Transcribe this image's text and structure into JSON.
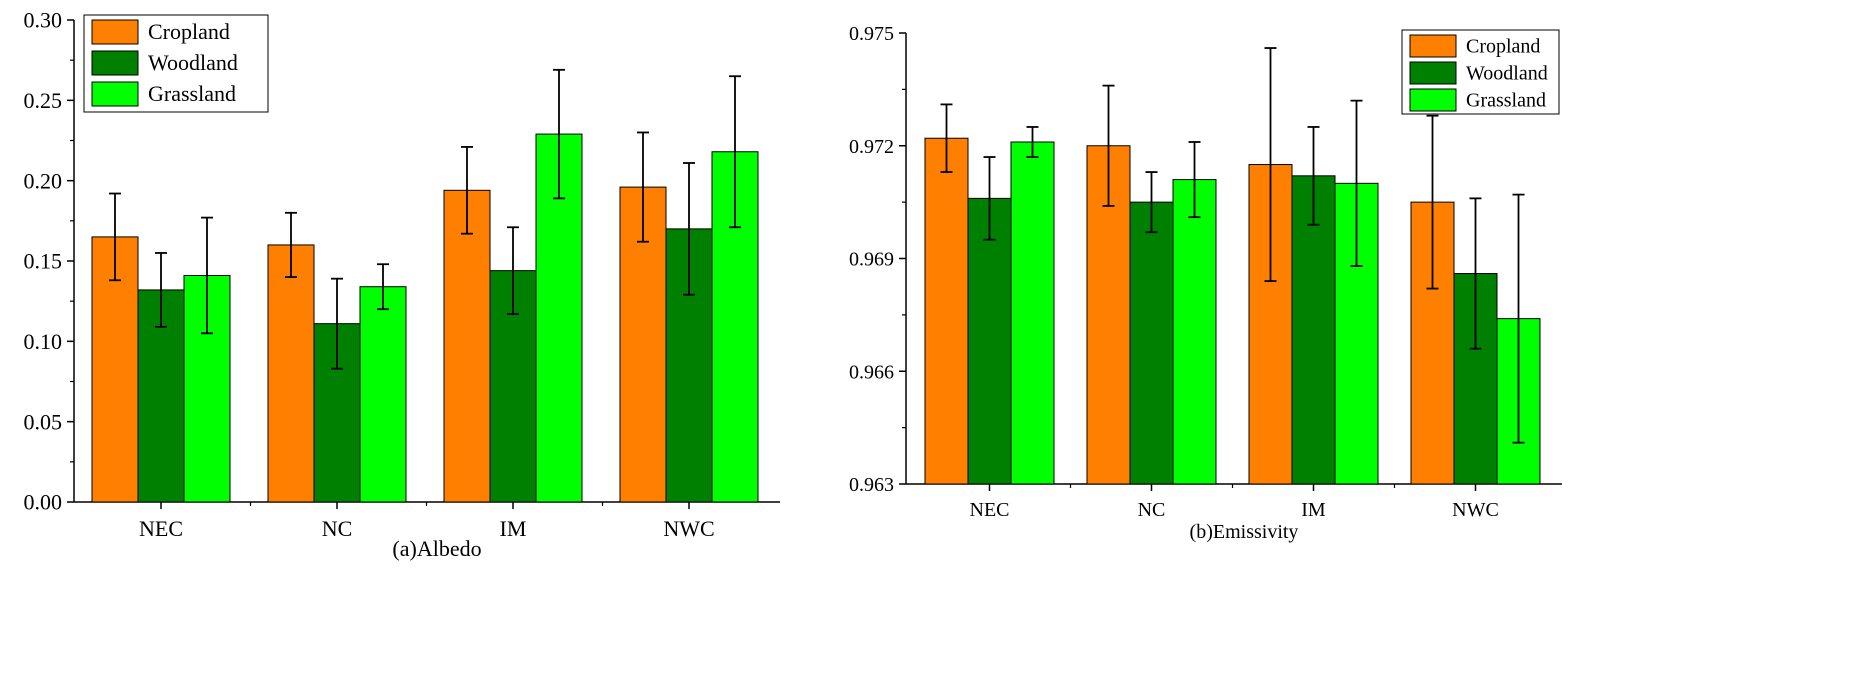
{
  "chart_data": [
    {
      "type": "bar",
      "title": "(a)Albedo",
      "xlabel": "",
      "ylabel": "",
      "categories": [
        "NEC",
        "NC",
        "IM",
        "NWC"
      ],
      "ylim": [
        0,
        0.3
      ],
      "yticks": [
        "0.00",
        "0.05",
        "0.10",
        "0.15",
        "0.20",
        "0.25",
        "0.30"
      ],
      "error_bars": true,
      "legend_position": "top-left",
      "series": [
        {
          "name": "Cropland",
          "color": "#FF8000",
          "values": [
            0.165,
            0.16,
            0.194,
            0.196
          ],
          "errors": [
            0.027,
            0.02,
            0.027,
            0.034
          ]
        },
        {
          "name": "Woodland",
          "color": "#008000",
          "values": [
            0.132,
            0.111,
            0.144,
            0.17
          ],
          "errors": [
            0.023,
            0.028,
            0.027,
            0.041
          ]
        },
        {
          "name": "Grassland",
          "color": "#00FF00",
          "values": [
            0.141,
            0.134,
            0.229,
            0.218
          ],
          "errors": [
            0.036,
            0.014,
            0.04,
            0.047
          ]
        }
      ]
    },
    {
      "type": "bar",
      "title": "(b)Emissivity",
      "xlabel": "",
      "ylabel": "",
      "categories": [
        "NEC",
        "NC",
        "IM",
        "NWC"
      ],
      "ylim": [
        0.963,
        0.975
      ],
      "yticks": [
        "0.963",
        "0.966",
        "0.969",
        "0.972",
        "0.975"
      ],
      "error_bars": true,
      "legend_position": "top-right",
      "series": [
        {
          "name": "Cropland",
          "color": "#FF8000",
          "values": [
            0.9722,
            0.972,
            0.9715,
            0.9705
          ],
          "errors": [
            0.0009,
            0.0016,
            0.0031,
            0.0023
          ]
        },
        {
          "name": "Woodland",
          "color": "#008000",
          "values": [
            0.9706,
            0.9705,
            0.9712,
            0.9686
          ],
          "errors": [
            0.0011,
            0.0008,
            0.0013,
            0.002
          ]
        },
        {
          "name": "Grassland",
          "color": "#00FF00",
          "values": [
            0.9721,
            0.9711,
            0.971,
            0.9674
          ],
          "errors": [
            0.0004,
            0.001,
            0.0022,
            0.0033
          ]
        }
      ]
    }
  ]
}
